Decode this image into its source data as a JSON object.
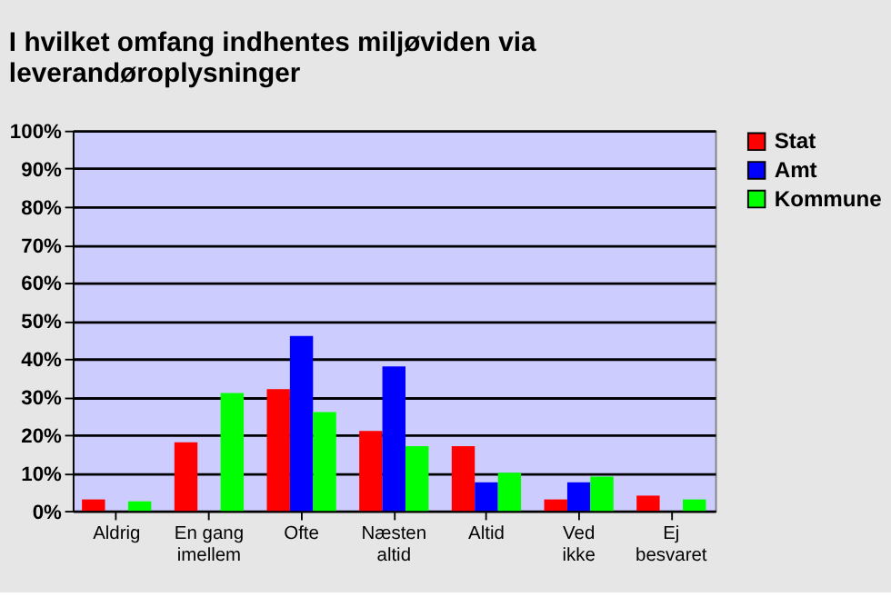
{
  "chart_data": {
    "type": "bar",
    "title": "I hvilket omfang indhentes miljøviden via leverandøroplysninger",
    "categories": [
      "Aldrig",
      "En gang imellem",
      "Ofte",
      "Næsten altid",
      "Altid",
      "Ved ikke",
      "Ej besvaret"
    ],
    "series": [
      {
        "name": "Stat",
        "color": "#ff0000",
        "values": [
          3,
          18,
          32,
          21,
          17,
          3,
          4
        ]
      },
      {
        "name": "Amt",
        "color": "#0000ff",
        "values": [
          0,
          0,
          46,
          38,
          7.5,
          7.5,
          0
        ]
      },
      {
        "name": "Kommune",
        "color": "#00ff00",
        "values": [
          2.5,
          31,
          26,
          17,
          10,
          9,
          3
        ]
      }
    ],
    "ylim": [
      0,
      100
    ],
    "yticks": [
      {
        "value": 0,
        "label": "0%"
      },
      {
        "value": 10,
        "label": "10%"
      },
      {
        "value": 20,
        "label": "20%"
      },
      {
        "value": 30,
        "label": "30%"
      },
      {
        "value": 40,
        "label": "40%"
      },
      {
        "value": 50,
        "label": "50%"
      },
      {
        "value": 60,
        "label": "60%"
      },
      {
        "value": 70,
        "label": "70%"
      },
      {
        "value": 80,
        "label": "80%"
      },
      {
        "value": 90,
        "label": "90%"
      },
      {
        "value": 100,
        "label": "100%"
      }
    ],
    "grid": "y",
    "legend": "right"
  }
}
